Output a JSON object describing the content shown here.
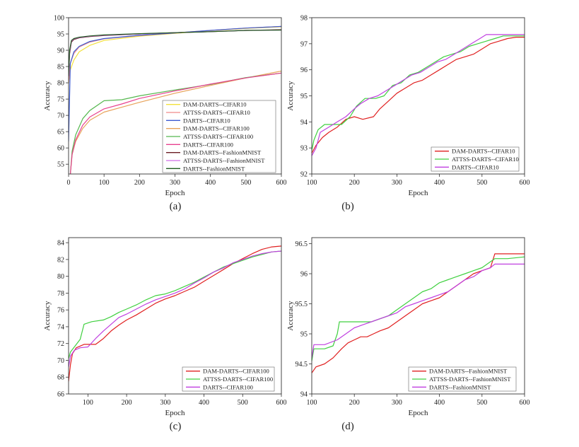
{
  "chart_data": [
    {
      "id": "a",
      "type": "line",
      "caption": "(a)",
      "xlabel": "Epoch",
      "ylabel": "Accuracy",
      "xlim": [
        0,
        600
      ],
      "ylim": [
        52,
        100
      ],
      "xticks": [
        0,
        100,
        200,
        300,
        400,
        500,
        600
      ],
      "yticks": [
        55,
        60,
        65,
        70,
        75,
        80,
        85,
        90,
        95,
        100
      ],
      "legend_position": "bottom-right",
      "series": [
        {
          "name": "DAM-DARTS--CIFAR10",
          "color": "#f2e03a",
          "x": [
            0,
            5,
            15,
            30,
            60,
            100,
            200,
            300,
            400,
            500,
            600
          ],
          "values": [
            80,
            84,
            87,
            89.5,
            91.5,
            93.0,
            94.3,
            95.2,
            96.0,
            96.7,
            97.2
          ]
        },
        {
          "name": "ATTSS-DARTS--CIFAR10",
          "color": "#f08a8a",
          "x": [
            0,
            5,
            15,
            30,
            60,
            100,
            200,
            300,
            400,
            500,
            600
          ],
          "values": [
            80,
            86,
            89,
            91,
            92.5,
            93.5,
            94.5,
            95.3,
            96.1,
            96.8,
            97.3
          ]
        },
        {
          "name": "DARTS--CIFAR10",
          "color": "#3d5bd0",
          "x": [
            0,
            5,
            15,
            30,
            60,
            100,
            200,
            300,
            400,
            500,
            600
          ],
          "values": [
            62,
            86,
            89.5,
            91.2,
            92.7,
            93.6,
            94.6,
            95.3,
            96.1,
            96.8,
            97.3
          ]
        },
        {
          "name": "DAM-DARTS--CIFAR100",
          "color": "#e8a35a",
          "x": [
            5,
            10,
            20,
            40,
            60,
            100,
            150,
            200,
            300,
            400,
            500,
            600
          ],
          "values": [
            52,
            58,
            62,
            66,
            68.5,
            71,
            72.5,
            74,
            76.8,
            79.2,
            81.5,
            83.6
          ]
        },
        {
          "name": "ATTSS-DARTS--CIFAR100",
          "color": "#55b84f",
          "x": [
            5,
            10,
            20,
            40,
            60,
            100,
            150,
            200,
            300,
            400,
            500,
            600
          ],
          "values": [
            52,
            59,
            64,
            69,
            71.5,
            74.5,
            74.8,
            76.0,
            77.8,
            79.5,
            81.6,
            83.0
          ]
        },
        {
          "name": "DARTS--CIFAR100",
          "color": "#e8408f",
          "x": [
            5,
            10,
            20,
            40,
            60,
            100,
            150,
            200,
            300,
            400,
            500,
            600
          ],
          "values": [
            52,
            58,
            62.5,
            67,
            69.5,
            72,
            73.5,
            75.2,
            77.5,
            79.6,
            81.5,
            83.0
          ]
        },
        {
          "name": "DAM-DARTS--FashionMNIST",
          "color": "#6b1c24",
          "x": [
            0,
            3,
            8,
            15,
            30,
            60,
            100,
            200,
            300,
            400,
            500,
            600
          ],
          "values": [
            82,
            89,
            92.5,
            93.3,
            93.8,
            94.2,
            94.5,
            95.0,
            95.4,
            95.7,
            96.1,
            96.3
          ]
        },
        {
          "name": "ATTSS-DARTS--FashionMNIST",
          "color": "#d06ee8",
          "x": [
            0,
            3,
            8,
            15,
            30,
            60,
            100,
            200,
            300,
            400,
            500,
            600
          ],
          "values": [
            82,
            89.5,
            92.8,
            93.5,
            93.9,
            94.3,
            94.6,
            95.0,
            95.4,
            95.7,
            96.1,
            96.2
          ]
        },
        {
          "name": "DARTS--FashionMNIST",
          "color": "#1e5a1e",
          "x": [
            0,
            3,
            8,
            15,
            30,
            60,
            100,
            200,
            300,
            400,
            500,
            600
          ],
          "values": [
            82,
            90,
            93,
            93.6,
            94.0,
            94.4,
            94.7,
            95.1,
            95.4,
            95.7,
            96.1,
            96.2
          ]
        }
      ]
    },
    {
      "id": "b",
      "type": "line",
      "caption": "(b)",
      "xlabel": "Epoch",
      "ylabel": "Accuracy",
      "xlim": [
        100,
        600
      ],
      "ylim": [
        92,
        98
      ],
      "xticks": [
        100,
        200,
        300,
        400,
        500,
        600
      ],
      "yticks": [
        92,
        93,
        94,
        95,
        96,
        97,
        98
      ],
      "legend_position": "bottom-right",
      "series": [
        {
          "name": "DAM-DARTS--CIFAR10",
          "color": "#e02020",
          "x": [
            100,
            110,
            125,
            140,
            160,
            180,
            200,
            220,
            245,
            260,
            280,
            300,
            320,
            340,
            360,
            380,
            400,
            420,
            440,
            460,
            480,
            500,
            520,
            540,
            560,
            580,
            600
          ],
          "values": [
            92.8,
            93.1,
            93.4,
            93.6,
            93.8,
            94.1,
            94.2,
            94.1,
            94.2,
            94.5,
            94.8,
            95.1,
            95.3,
            95.5,
            95.6,
            95.8,
            96.0,
            96.2,
            96.4,
            96.5,
            96.6,
            96.8,
            97.0,
            97.1,
            97.2,
            97.25,
            97.25
          ]
        },
        {
          "name": "ATTSS-DARTS--CIFAR10",
          "color": "#40d040",
          "x": [
            100,
            105,
            115,
            130,
            150,
            170,
            190,
            205,
            225,
            250,
            270,
            290,
            310,
            330,
            350,
            370,
            390,
            410,
            430,
            450,
            470,
            490,
            510,
            530,
            550,
            580,
            600
          ],
          "values": [
            92.9,
            93.3,
            93.7,
            93.9,
            93.9,
            93.9,
            94.2,
            94.6,
            94.9,
            94.9,
            95.0,
            95.4,
            95.5,
            95.8,
            95.9,
            96.1,
            96.3,
            96.5,
            96.6,
            96.7,
            96.9,
            97.0,
            97.1,
            97.2,
            97.3,
            97.3,
            97.3
          ]
        },
        {
          "name": "DARTS--CIFAR10",
          "color": "#c040e0",
          "x": [
            100,
            110,
            120,
            140,
            160,
            180,
            200,
            215,
            235,
            255,
            275,
            295,
            315,
            335,
            355,
            375,
            395,
            415,
            435,
            455,
            475,
            495,
            510,
            540,
            600
          ],
          "values": [
            92.7,
            93.0,
            93.6,
            93.8,
            94.0,
            94.2,
            94.5,
            94.7,
            94.9,
            95.0,
            95.2,
            95.4,
            95.6,
            95.8,
            95.9,
            96.1,
            96.3,
            96.4,
            96.6,
            96.8,
            97.0,
            97.2,
            97.35,
            97.35,
            97.35
          ]
        }
      ]
    },
    {
      "id": "c",
      "type": "line",
      "caption": "(c)",
      "xlabel": "Epoch",
      "ylabel": "Accuracy",
      "xlim": [
        50,
        600
      ],
      "ylim": [
        66,
        84.6
      ],
      "xticks": [
        100,
        200,
        300,
        400,
        500,
        600
      ],
      "yticks": [
        66,
        68,
        70,
        72,
        74,
        76,
        78,
        80,
        82,
        84
      ],
      "legend_position": "bottom-right",
      "series": [
        {
          "name": "DAM-DARTS--CIFAR100",
          "color": "#e02020",
          "x": [
            50,
            55,
            60,
            70,
            90,
            120,
            140,
            160,
            180,
            200,
            225,
            250,
            275,
            300,
            325,
            350,
            375,
            400,
            425,
            450,
            475,
            500,
            525,
            550,
            575,
            600
          ],
          "values": [
            67.5,
            69.5,
            70.8,
            71.5,
            71.9,
            71.9,
            72.6,
            73.5,
            74.2,
            74.8,
            75.4,
            76.1,
            76.8,
            77.3,
            77.7,
            78.2,
            78.7,
            79.4,
            80.1,
            80.8,
            81.5,
            82.1,
            82.7,
            83.2,
            83.5,
            83.6
          ]
        },
        {
          "name": "ATTSS-DARTS--CIFAR100",
          "color": "#40d040",
          "x": [
            50,
            55,
            65,
            80,
            90,
            110,
            140,
            160,
            180,
            200,
            225,
            250,
            275,
            300,
            325,
            350,
            375,
            400,
            425,
            450,
            475,
            500,
            525,
            550,
            575,
            600
          ],
          "values": [
            70.2,
            71.0,
            71.6,
            72.5,
            74.3,
            74.6,
            74.8,
            75.2,
            75.7,
            76.1,
            76.6,
            77.2,
            77.7,
            77.9,
            78.3,
            78.8,
            79.3,
            79.9,
            80.5,
            81.1,
            81.5,
            81.9,
            82.3,
            82.6,
            82.9,
            83.0
          ]
        },
        {
          "name": "DARTS--CIFAR100",
          "color": "#c040e0",
          "x": [
            50,
            55,
            65,
            80,
            100,
            120,
            140,
            160,
            180,
            200,
            225,
            250,
            275,
            300,
            325,
            350,
            375,
            400,
            425,
            450,
            475,
            500,
            525,
            550,
            575,
            600
          ],
          "values": [
            69.2,
            70.5,
            71.2,
            71.5,
            71.6,
            72.6,
            73.5,
            74.3,
            75.1,
            75.5,
            76.1,
            76.7,
            77.2,
            77.6,
            78.0,
            78.5,
            79.2,
            79.8,
            80.5,
            81.0,
            81.6,
            82.0,
            82.4,
            82.7,
            82.9,
            83.0
          ]
        }
      ]
    },
    {
      "id": "d",
      "type": "line",
      "caption": "(d)",
      "xlabel": "Epoch",
      "ylabel": "Accuracy",
      "xlim": [
        100,
        600
      ],
      "ylim": [
        94.0,
        96.6
      ],
      "xticks": [
        100,
        200,
        300,
        400,
        500,
        600
      ],
      "yticks": [
        94.0,
        94.5,
        95.0,
        95.5,
        96.0,
        96.5
      ],
      "legend_position": "bottom-right",
      "series": [
        {
          "name": "DAM-DARTS--FashionMNIST",
          "color": "#e02020",
          "x": [
            100,
            110,
            130,
            150,
            170,
            185,
            200,
            215,
            230,
            245,
            260,
            280,
            300,
            320,
            340,
            360,
            380,
            400,
            420,
            440,
            460,
            480,
            500,
            520,
            530,
            560,
            600
          ],
          "values": [
            94.35,
            94.45,
            94.5,
            94.6,
            94.75,
            94.85,
            94.9,
            94.95,
            94.95,
            95.0,
            95.05,
            95.1,
            95.2,
            95.3,
            95.4,
            95.5,
            95.55,
            95.6,
            95.7,
            95.8,
            95.9,
            96.0,
            96.05,
            96.1,
            96.33,
            96.33,
            96.33
          ]
        },
        {
          "name": "ATTSS-DARTS--FashionMNIST",
          "color": "#40d040",
          "x": [
            100,
            105,
            130,
            150,
            160,
            165,
            200,
            240,
            280,
            300,
            320,
            340,
            360,
            380,
            400,
            420,
            440,
            460,
            480,
            500,
            520,
            530,
            560,
            600
          ],
          "values": [
            94.55,
            94.75,
            94.75,
            94.8,
            95.0,
            95.2,
            95.2,
            95.2,
            95.3,
            95.4,
            95.5,
            95.6,
            95.7,
            95.75,
            95.85,
            95.9,
            95.95,
            96.0,
            96.05,
            96.1,
            96.2,
            96.25,
            96.25,
            96.28
          ]
        },
        {
          "name": "DARTS--FashionMNIST",
          "color": "#c040e0",
          "x": [
            100,
            105,
            130,
            160,
            180,
            200,
            220,
            240,
            260,
            280,
            300,
            320,
            340,
            360,
            380,
            400,
            420,
            440,
            460,
            480,
            500,
            520,
            530,
            560,
            600
          ],
          "values": [
            94.6,
            94.82,
            94.82,
            94.9,
            95.0,
            95.1,
            95.15,
            95.2,
            95.25,
            95.3,
            95.35,
            95.45,
            95.5,
            95.55,
            95.6,
            95.65,
            95.7,
            95.8,
            95.9,
            95.95,
            96.05,
            96.1,
            96.16,
            96.16,
            96.16
          ]
        }
      ]
    }
  ]
}
